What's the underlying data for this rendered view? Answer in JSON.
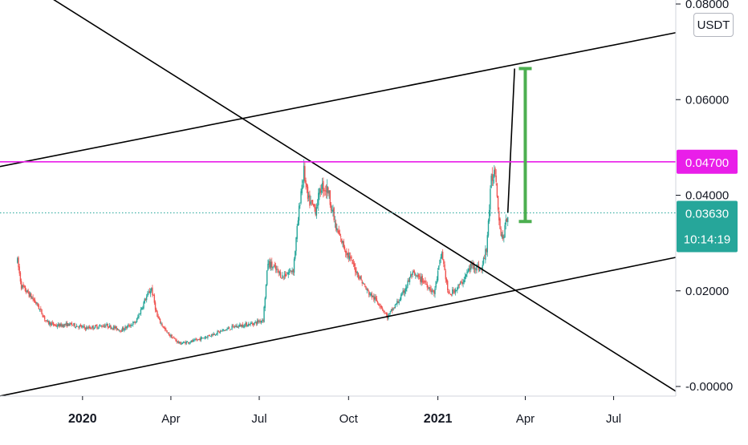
{
  "chart_data": {
    "type": "candlestick",
    "quote_currency": "USDT",
    "y_axis": {
      "ticks": [
        "0.08000",
        "0.06000",
        "0.04000",
        "0.02000",
        "-0.00000"
      ],
      "tick_values": [
        0.08,
        0.06,
        0.04,
        0.02,
        0.0
      ],
      "range": [
        -0.001,
        0.081
      ],
      "position": "right"
    },
    "x_axis": {
      "ticks": [
        "2020",
        "Apr",
        "Jul",
        "Oct",
        "2021",
        "Apr",
        "Jul"
      ],
      "tick_dates": [
        "2020-01-01",
        "2020-04-01",
        "2020-07-01",
        "2020-10-01",
        "2021-01-01",
        "2021-04-01",
        "2021-07-01"
      ],
      "bold_ticks": [
        "2020",
        "2021"
      ],
      "range": [
        "2019-10-08",
        "2021-09-03"
      ]
    },
    "price_tags": [
      {
        "value": "0.04700",
        "color": "#e91ee9"
      },
      {
        "value": "0.03630",
        "countdown": "10:14:19",
        "color": "#26a69a"
      }
    ],
    "series": [
      {
        "type": "candles",
        "up_color": "#26a69a",
        "down_color": "#ef5350",
        "points": [
          {
            "x": "2019-10-26",
            "y": 0.0262
          },
          {
            "x": "2019-10-30",
            "y": 0.021
          },
          {
            "x": "2019-11-06",
            "y": 0.0195
          },
          {
            "x": "2019-11-15",
            "y": 0.0172
          },
          {
            "x": "2019-11-25",
            "y": 0.0135
          },
          {
            "x": "2019-12-05",
            "y": 0.0127
          },
          {
            "x": "2019-12-20",
            "y": 0.013
          },
          {
            "x": "2020-01-05",
            "y": 0.0122
          },
          {
            "x": "2020-01-25",
            "y": 0.0128
          },
          {
            "x": "2020-02-10",
            "y": 0.0118
          },
          {
            "x": "2020-02-25",
            "y": 0.0135
          },
          {
            "x": "2020-03-05",
            "y": 0.018
          },
          {
            "x": "2020-03-12",
            "y": 0.0205
          },
          {
            "x": "2020-03-18",
            "y": 0.0145
          },
          {
            "x": "2020-03-28",
            "y": 0.0112
          },
          {
            "x": "2020-04-10",
            "y": 0.009
          },
          {
            "x": "2020-04-25",
            "y": 0.0095
          },
          {
            "x": "2020-05-15",
            "y": 0.011
          },
          {
            "x": "2020-06-05",
            "y": 0.0125
          },
          {
            "x": "2020-06-25",
            "y": 0.0132
          },
          {
            "x": "2020-07-05",
            "y": 0.014
          },
          {
            "x": "2020-07-10",
            "y": 0.026
          },
          {
            "x": "2020-07-25",
            "y": 0.023
          },
          {
            "x": "2020-08-05",
            "y": 0.0245
          },
          {
            "x": "2020-08-13",
            "y": 0.041
          },
          {
            "x": "2020-08-16",
            "y": 0.045
          },
          {
            "x": "2020-08-20",
            "y": 0.039
          },
          {
            "x": "2020-08-28",
            "y": 0.037
          },
          {
            "x": "2020-09-03",
            "y": 0.042
          },
          {
            "x": "2020-09-10",
            "y": 0.041
          },
          {
            "x": "2020-09-18",
            "y": 0.033
          },
          {
            "x": "2020-09-28",
            "y": 0.0285
          },
          {
            "x": "2020-10-08",
            "y": 0.0245
          },
          {
            "x": "2020-10-20",
            "y": 0.02
          },
          {
            "x": "2020-11-03",
            "y": 0.017
          },
          {
            "x": "2020-11-10",
            "y": 0.0145
          },
          {
            "x": "2020-11-25",
            "y": 0.019
          },
          {
            "x": "2020-12-05",
            "y": 0.0235
          },
          {
            "x": "2020-12-18",
            "y": 0.022
          },
          {
            "x": "2020-12-28",
            "y": 0.0195
          },
          {
            "x": "2021-01-05",
            "y": 0.028
          },
          {
            "x": "2021-01-12",
            "y": 0.019
          },
          {
            "x": "2021-01-25",
            "y": 0.0215
          },
          {
            "x": "2021-02-05",
            "y": 0.0255
          },
          {
            "x": "2021-02-15",
            "y": 0.0245
          },
          {
            "x": "2021-02-20",
            "y": 0.029
          },
          {
            "x": "2021-02-25",
            "y": 0.043
          },
          {
            "x": "2021-03-01",
            "y": 0.0455
          },
          {
            "x": "2021-03-06",
            "y": 0.033
          },
          {
            "x": "2021-03-09",
            "y": 0.031
          },
          {
            "x": "2021-03-12",
            "y": 0.034
          },
          {
            "x": "2021-03-14",
            "y": 0.0363
          }
        ]
      }
    ],
    "drawings": [
      {
        "type": "trend_line",
        "name": "upper-channel-line",
        "color": "#000000",
        "points": [
          {
            "x": "2019-10-08",
            "y": 0.046
          },
          {
            "x": "2021-09-03",
            "y": 0.074
          }
        ]
      },
      {
        "type": "trend_line",
        "name": "lower-channel-line",
        "color": "#000000",
        "points": [
          {
            "x": "2019-10-08",
            "y": -0.002
          },
          {
            "x": "2021-09-03",
            "y": 0.027
          }
        ]
      },
      {
        "type": "trend_line",
        "name": "descending-line",
        "color": "#000000",
        "points": [
          {
            "x": "2019-11-16",
            "y": 0.083
          },
          {
            "x": "2021-09-03",
            "y": -0.001
          }
        ]
      },
      {
        "type": "trend_line",
        "name": "projection-line",
        "color": "#000000",
        "points": [
          {
            "x": "2021-03-14",
            "y": 0.0363
          },
          {
            "x": "2021-03-21",
            "y": 0.0665
          }
        ]
      },
      {
        "type": "horizontal_line",
        "name": "resistance-level",
        "color": "#e91ee9",
        "y": 0.047
      },
      {
        "type": "horizontal_line",
        "name": "last-price-line",
        "color": "#26a69a",
        "style": "dotted",
        "y": 0.0363
      },
      {
        "type": "range_bar",
        "name": "target-range-bar",
        "color": "#4caf50",
        "x": "2021-04-01",
        "y_from": 0.0345,
        "y_to": 0.0665
      }
    ]
  }
}
